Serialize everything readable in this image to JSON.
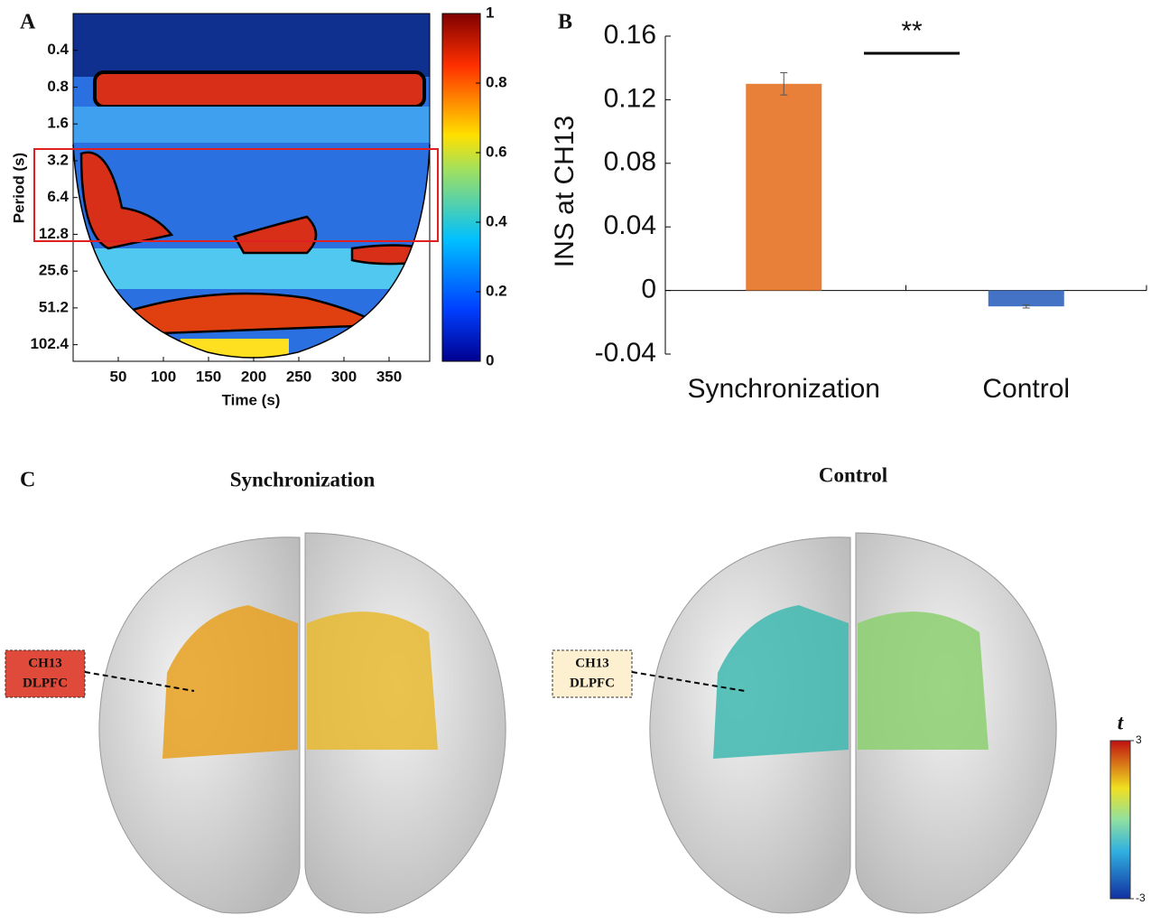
{
  "chart_data": [
    {
      "type": "heatmap",
      "panel": "A",
      "xlabel": "Time (s)",
      "ylabel": "Period (s)",
      "log_y": true,
      "xlim": [
        0,
        395
      ],
      "xticks": [
        50,
        100,
        150,
        200,
        250,
        300,
        350
      ],
      "ylim": [
        0.2,
        140
      ],
      "yticks": [
        0.4,
        0.8,
        1.6,
        3.2,
        6.4,
        12.8,
        25.6,
        51.2,
        102.4
      ],
      "clim": [
        0,
        1
      ],
      "colorbar_ticks": [
        0,
        0.2,
        0.4,
        0.6,
        0.8,
        1
      ]
    },
    {
      "type": "bar",
      "panel": "B",
      "ylabel": "INS at CH13",
      "categories": [
        "Synchronization",
        "Control"
      ],
      "values": [
        0.13,
        -0.01
      ],
      "errors": [
        0.007,
        0.001
      ],
      "colors": [
        "#e8803a",
        "#4472c4"
      ],
      "ylim": [
        -0.04,
        0.16
      ],
      "yticks": [
        -0.04,
        0,
        0.04,
        0.08,
        0.12,
        0.16
      ],
      "annotation": "**"
    },
    {
      "type": "brain",
      "panel": "C",
      "titles": [
        "Synchronization",
        "Control"
      ],
      "callouts": [
        [
          "CH13",
          "DLPFC"
        ],
        [
          "CH13",
          "DLPFC"
        ]
      ],
      "colorbar_label": "t",
      "clim": [
        -3,
        3
      ],
      "colorbar_ticks": [
        -3,
        3
      ]
    }
  ]
}
